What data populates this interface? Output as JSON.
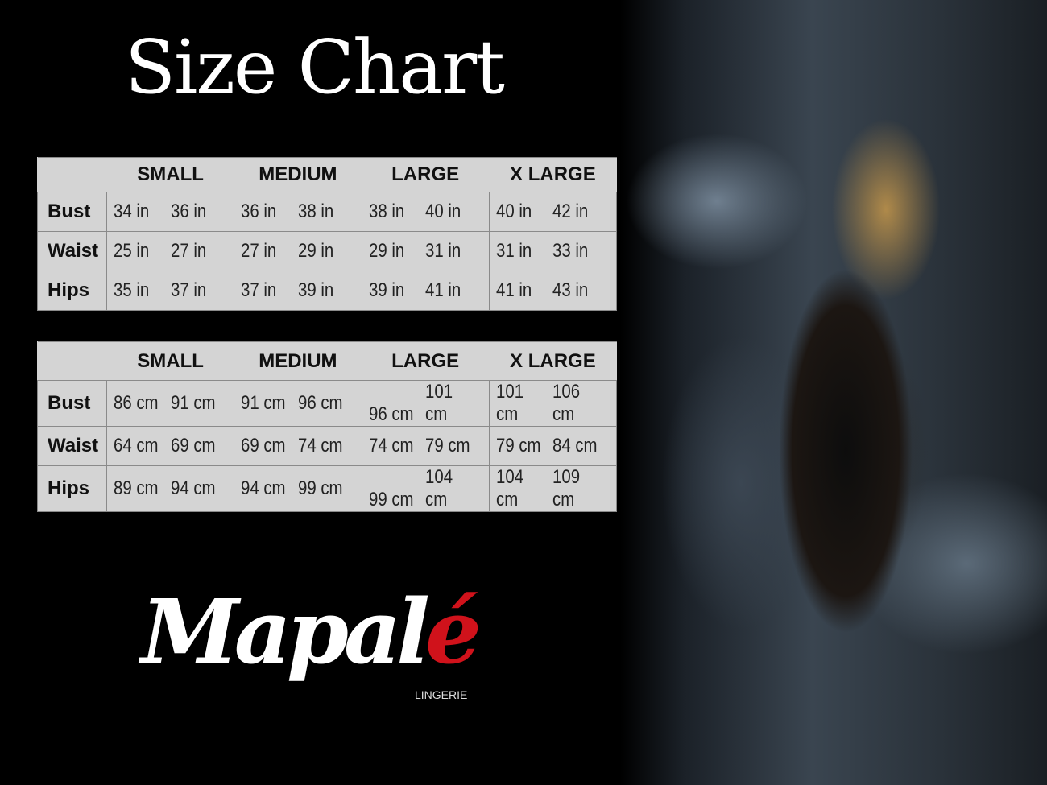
{
  "title": "Size Chart",
  "sizes": [
    "SMALL",
    "MEDIUM",
    "LARGE",
    "X LARGE"
  ],
  "inches": {
    "rows": [
      {
        "label": "Bust",
        "values": [
          [
            "34 in",
            "36 in"
          ],
          [
            "36 in",
            "38 in"
          ],
          [
            "38 in",
            "40 in"
          ],
          [
            "40 in",
            "42 in"
          ]
        ]
      },
      {
        "label": "Waist",
        "values": [
          [
            "25 in",
            "27 in"
          ],
          [
            "27 in",
            "29 in"
          ],
          [
            "29 in",
            "31 in"
          ],
          [
            "31 in",
            "33 in"
          ]
        ]
      },
      {
        "label": "Hips",
        "values": [
          [
            "35 in",
            "37 in"
          ],
          [
            "37 in",
            "39 in"
          ],
          [
            "39 in",
            "41 in"
          ],
          [
            "41 in",
            "43 in"
          ]
        ]
      }
    ]
  },
  "cm": {
    "rows": [
      {
        "label": "Bust",
        "values": [
          [
            "86 cm",
            "91 cm"
          ],
          [
            "91 cm",
            "96 cm"
          ],
          [
            "96 cm",
            "101 cm"
          ],
          [
            "101 cm",
            "106 cm"
          ]
        ]
      },
      {
        "label": "Waist",
        "values": [
          [
            "64 cm",
            "69 cm"
          ],
          [
            "69 cm",
            "74 cm"
          ],
          [
            "74 cm",
            "79 cm"
          ],
          [
            "79 cm",
            "84 cm"
          ]
        ]
      },
      {
        "label": "Hips",
        "values": [
          [
            "89 cm",
            "94 cm"
          ],
          [
            "94 cm",
            "99 cm"
          ],
          [
            "99 cm",
            "104 cm"
          ],
          [
            "104 cm",
            "109 cm"
          ]
        ]
      }
    ]
  },
  "logo": {
    "text_main": "Mapal",
    "text_accent": "é",
    "subtitle": "LINGERIE",
    "accent_color": "#d0121b"
  }
}
